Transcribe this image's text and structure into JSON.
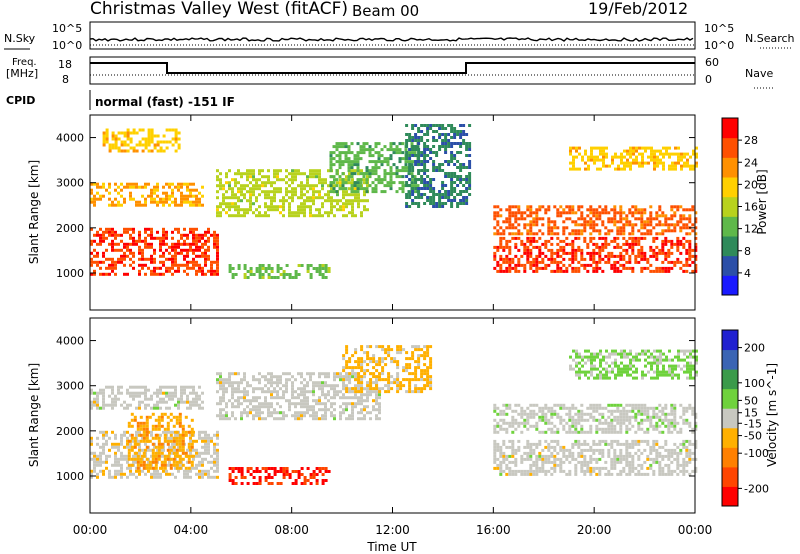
{
  "header": {
    "title": "Christmas Valley West (fitACF)",
    "beam": "Beam 00",
    "date": "19/Feb/2012"
  },
  "noise_panel": {
    "left_label": "N.Sky",
    "left_ticks": [
      "10^5",
      "10^0"
    ],
    "right_label": "N.Search",
    "right_ticks": [
      "10^5",
      "10^0"
    ]
  },
  "freq_panel": {
    "left_label_1": "Freq.",
    "left_label_2": "[MHz]",
    "left_ticks": [
      "18",
      "8"
    ],
    "right_label": "Nave",
    "right_ticks": [
      "60",
      "0"
    ]
  },
  "cpid": {
    "label": "CPID",
    "value": "normal (fast) -151 IF"
  },
  "colors": {
    "power_scale": [
      "#1a1aff",
      "#2b4fa8",
      "#2f8a5a",
      "#5fb84a",
      "#b8d21e",
      "#ffd000",
      "#ff9000",
      "#ff5000",
      "#ff0000"
    ],
    "velocity_scale": [
      "#ff0000",
      "#ff4500",
      "#ff8000",
      "#ffb000",
      "#c8c8c0",
      "#6fd23c",
      "#3a9a4a",
      "#3a64b4",
      "#2020d0"
    ]
  },
  "chart_data": [
    {
      "type": "heatmap",
      "name": "power",
      "ylabel": "Slant Range [km]",
      "xlabel": "Time UT",
      "x_ticks": [
        "00:00",
        "04:00",
        "08:00",
        "12:00",
        "16:00",
        "20:00",
        "00:00"
      ],
      "xlim_hours": [
        0,
        24
      ],
      "y_ticks": [
        1000,
        2000,
        3000,
        4000
      ],
      "ylim": [
        180,
        4500
      ],
      "colorbar_label": "Power [dB]",
      "colorbar_ticks": [
        4,
        8,
        12,
        16,
        20,
        24,
        28
      ],
      "colorbar_range": [
        0,
        32
      ],
      "echo_regions": [
        {
          "t": [
            0.0,
            5.0
          ],
          "r": [
            1000,
            2000
          ],
          "value": 28
        },
        {
          "t": [
            0.0,
            4.5
          ],
          "r": [
            2500,
            3000
          ],
          "value": 22
        },
        {
          "t": [
            0.5,
            3.5
          ],
          "r": [
            3700,
            4200
          ],
          "value": 20
        },
        {
          "t": [
            5.0,
            11.0
          ],
          "r": [
            2300,
            3300
          ],
          "value": 16
        },
        {
          "t": [
            9.5,
            13.0
          ],
          "r": [
            2800,
            3900
          ],
          "value": 12
        },
        {
          "t": [
            12.5,
            15.0
          ],
          "r": [
            2500,
            4300
          ],
          "value": 8
        },
        {
          "t": [
            5.5,
            9.5
          ],
          "r": [
            900,
            1200
          ],
          "value": 13
        },
        {
          "t": [
            16.0,
            24.0
          ],
          "r": [
            1050,
            1800
          ],
          "value": 28
        },
        {
          "t": [
            16.0,
            24.0
          ],
          "r": [
            1900,
            2500
          ],
          "value": 26
        },
        {
          "t": [
            19.0,
            24.0
          ],
          "r": [
            3300,
            3800
          ],
          "value": 20
        }
      ]
    },
    {
      "type": "heatmap",
      "name": "velocity",
      "ylabel": "Slant Range [km]",
      "xlabel": "Time UT",
      "x_ticks": [
        "00:00",
        "04:00",
        "08:00",
        "12:00",
        "16:00",
        "20:00",
        "00:00"
      ],
      "xlim_hours": [
        0,
        24
      ],
      "y_ticks": [
        1000,
        2000,
        3000,
        4000
      ],
      "ylim": [
        180,
        4500
      ],
      "colorbar_label": "Velocity [m s^-1]",
      "colorbar_ticks": [
        200,
        100,
        50,
        15,
        -15,
        -50,
        -100,
        -200
      ],
      "colorbar_range": [
        -250,
        250
      ],
      "echo_regions": [
        {
          "t": [
            0.0,
            5.0
          ],
          "r": [
            1000,
            2000
          ],
          "value": -10
        },
        {
          "t": [
            1.5,
            4.0
          ],
          "r": [
            1200,
            2400
          ],
          "value": -70
        },
        {
          "t": [
            0.0,
            4.5
          ],
          "r": [
            2500,
            3000
          ],
          "value": 0
        },
        {
          "t": [
            5.0,
            11.5
          ],
          "r": [
            2300,
            3300
          ],
          "value": 0
        },
        {
          "t": [
            10.0,
            13.5
          ],
          "r": [
            2900,
            3900
          ],
          "value": -40
        },
        {
          "t": [
            5.5,
            9.5
          ],
          "r": [
            850,
            1200
          ],
          "value": -200
        },
        {
          "t": [
            16.0,
            24.0
          ],
          "r": [
            1050,
            1800
          ],
          "value": 0
        },
        {
          "t": [
            16.0,
            24.0
          ],
          "r": [
            2000,
            2600
          ],
          "value": 5
        },
        {
          "t": [
            19.0,
            24.0
          ],
          "r": [
            3200,
            3800
          ],
          "value": 40
        }
      ]
    }
  ]
}
